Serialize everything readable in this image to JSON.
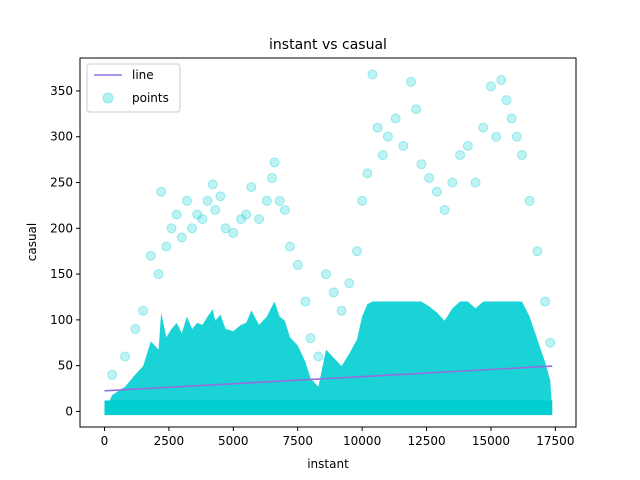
{
  "chart_data": {
    "type": "scatter",
    "title": "instant vs casual",
    "xlabel": "instant",
    "ylabel": "casual",
    "xlim": [
      -950,
      18300
    ],
    "ylim": [
      -17,
      386
    ],
    "xticks": [
      0,
      2500,
      5000,
      7500,
      10000,
      12500,
      15000,
      17500
    ],
    "yticks": [
      0,
      50,
      100,
      150,
      200,
      250,
      300,
      350
    ],
    "grid": false,
    "legend_position": "top-left",
    "colors": {
      "points": "#00ced1",
      "line": "#9370db"
    },
    "series": [
      {
        "name": "line",
        "kind": "line",
        "x": [
          1,
          17379
        ],
        "y": [
          22.5,
          49.5
        ]
      },
      {
        "name": "points",
        "kind": "scatter",
        "x": [
          300,
          800,
          1200,
          1500,
          1800,
          2100,
          2200,
          2400,
          2600,
          2800,
          3000,
          3200,
          3400,
          3600,
          3800,
          4000,
          4200,
          4300,
          4500,
          4700,
          5000,
          5300,
          5500,
          5700,
          6000,
          6300,
          6500,
          6600,
          6800,
          7000,
          7200,
          7500,
          7800,
          8000,
          8300,
          8600,
          8900,
          9200,
          9500,
          9800,
          10000,
          10200,
          10400,
          10600,
          10800,
          11000,
          11300,
          11600,
          11900,
          12100,
          12300,
          12600,
          12900,
          13200,
          13500,
          13800,
          14100,
          14400,
          14700,
          15000,
          15200,
          15400,
          15600,
          15800,
          16000,
          16200,
          16500,
          16800,
          17100,
          17300
        ],
        "y": [
          40,
          60,
          90,
          110,
          170,
          150,
          240,
          180,
          200,
          215,
          190,
          230,
          200,
          215,
          210,
          230,
          248,
          220,
          235,
          200,
          195,
          210,
          215,
          245,
          210,
          230,
          255,
          272,
          230,
          220,
          180,
          160,
          120,
          80,
          60,
          150,
          130,
          110,
          140,
          175,
          230,
          260,
          368,
          310,
          280,
          300,
          320,
          290,
          360,
          330,
          270,
          255,
          240,
          220,
          250,
          280,
          290,
          250,
          310,
          355,
          300,
          362,
          340,
          320,
          300,
          280,
          230,
          175,
          120,
          75
        ]
      }
    ]
  }
}
